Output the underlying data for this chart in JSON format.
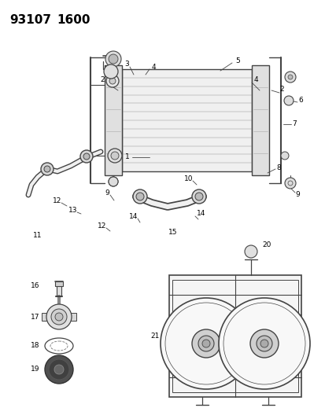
{
  "title_part1": "93107",
  "title_part2": "1600",
  "bg_color": "#ffffff",
  "lc": "#444444",
  "fig_width": 4.14,
  "fig_height": 5.33,
  "dpi": 100
}
